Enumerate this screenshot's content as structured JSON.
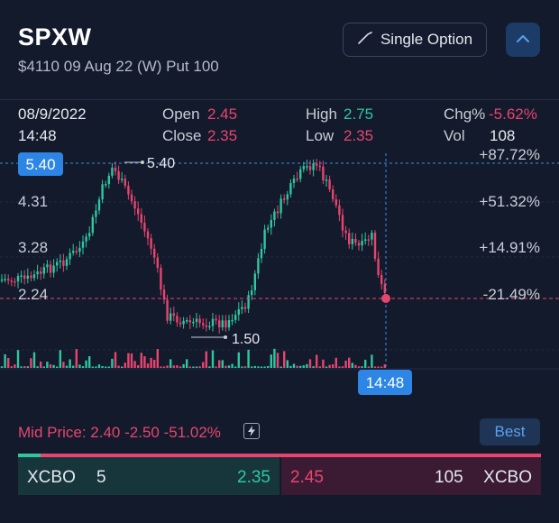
{
  "header": {
    "symbol": "SPXW",
    "contract": "$4110 09 Aug 22 (W) Put 100",
    "strategy_button": "Single Option"
  },
  "stats": {
    "date": "08/9/2022",
    "time": "14:48",
    "open_label": "Open",
    "open_value": "2.45",
    "close_label": "Close",
    "close_value": "2.35",
    "high_label": "High",
    "high_value": "2.75",
    "low_label": "Low",
    "low_value": "2.35",
    "chg_label": "Chg%",
    "chg_value": "-5.62%",
    "vol_label": "Vol",
    "vol_value": "108"
  },
  "chart": {
    "y_ticks": [
      "5.40",
      "4.31",
      "3.28",
      "2.24"
    ],
    "pct_ticks": [
      "+87.72%",
      "+51.32%",
      "+14.91%",
      "-21.49%"
    ],
    "crosshair_price": "5.40",
    "crosshair_time": "14:48",
    "high_marker": "5.40",
    "low_marker": "1.50",
    "colors": {
      "up": "#2fc6a0",
      "down": "#e8456e",
      "crosshair": "#3b8fe0"
    }
  },
  "mid": {
    "label": "Mid Price: 2.40 -2.50 -51.02%",
    "best_button": "Best"
  },
  "book": {
    "bid_exchange": "XCBO",
    "bid_size": "5",
    "bid_price": "2.35",
    "ask_price": "2.45",
    "ask_size": "105",
    "ask_exchange": "XCBO"
  }
}
